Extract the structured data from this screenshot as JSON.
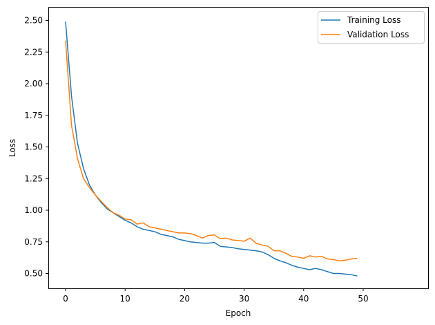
{
  "chart_data": {
    "type": "line",
    "title": "",
    "xlabel": "Epoch",
    "ylabel": "Loss",
    "xlim": [
      -2.5,
      51.5
    ],
    "ylim": [
      0.38,
      2.59
    ],
    "xticks": [
      0,
      10,
      20,
      30,
      40,
      50
    ],
    "yticks": [
      0.5,
      0.75,
      1.0,
      1.25,
      1.5,
      1.75,
      2.0,
      2.25,
      2.5
    ],
    "ytick_labels": [
      "0.50",
      "0.75",
      "1.00",
      "1.25",
      "1.50",
      "1.75",
      "2.00",
      "2.25",
      "2.50"
    ],
    "xtick_labels": [
      "0",
      "10",
      "20",
      "30",
      "40",
      "50"
    ],
    "grid": false,
    "legend_position": "upper right",
    "x": [
      0,
      1,
      2,
      3,
      4,
      5,
      6,
      7,
      8,
      9,
      10,
      11,
      12,
      13,
      14,
      15,
      16,
      17,
      18,
      19,
      20,
      21,
      22,
      23,
      24,
      25,
      26,
      27,
      28,
      29,
      30,
      31,
      32,
      33,
      34,
      35,
      36,
      37,
      38,
      39,
      40,
      41,
      42,
      43,
      44,
      45,
      46,
      47,
      48,
      49
    ],
    "series": [
      {
        "name": "Training Loss",
        "color": "#1f77b4",
        "values": [
          2.49,
          1.9,
          1.53,
          1.33,
          1.2,
          1.12,
          1.06,
          1.01,
          0.98,
          0.95,
          0.92,
          0.9,
          0.87,
          0.85,
          0.84,
          0.83,
          0.81,
          0.8,
          0.79,
          0.77,
          0.76,
          0.75,
          0.745,
          0.74,
          0.74,
          0.745,
          0.715,
          0.71,
          0.705,
          0.695,
          0.69,
          0.685,
          0.68,
          0.67,
          0.65,
          0.62,
          0.6,
          0.585,
          0.565,
          0.55,
          0.54,
          0.53,
          0.54,
          0.53,
          0.515,
          0.5,
          0.5,
          0.495,
          0.49,
          0.48
        ]
      },
      {
        "name": "Validation Loss",
        "color": "#ff7f0e",
        "values": [
          2.34,
          1.67,
          1.41,
          1.25,
          1.18,
          1.12,
          1.07,
          1.02,
          0.98,
          0.96,
          0.93,
          0.925,
          0.89,
          0.9,
          0.87,
          0.86,
          0.85,
          0.84,
          0.83,
          0.82,
          0.82,
          0.815,
          0.8,
          0.78,
          0.8,
          0.805,
          0.775,
          0.78,
          0.765,
          0.76,
          0.755,
          0.78,
          0.74,
          0.725,
          0.715,
          0.68,
          0.68,
          0.66,
          0.635,
          0.63,
          0.62,
          0.64,
          0.63,
          0.635,
          0.615,
          0.61,
          0.6,
          0.605,
          0.615,
          0.62
        ]
      }
    ]
  },
  "legend": {
    "items": [
      {
        "label": "Training Loss",
        "color": "#1f77b4"
      },
      {
        "label": "Validation Loss",
        "color": "#ff7f0e"
      }
    ]
  },
  "axes": {
    "xlabel": "Epoch",
    "ylabel": "Loss"
  }
}
